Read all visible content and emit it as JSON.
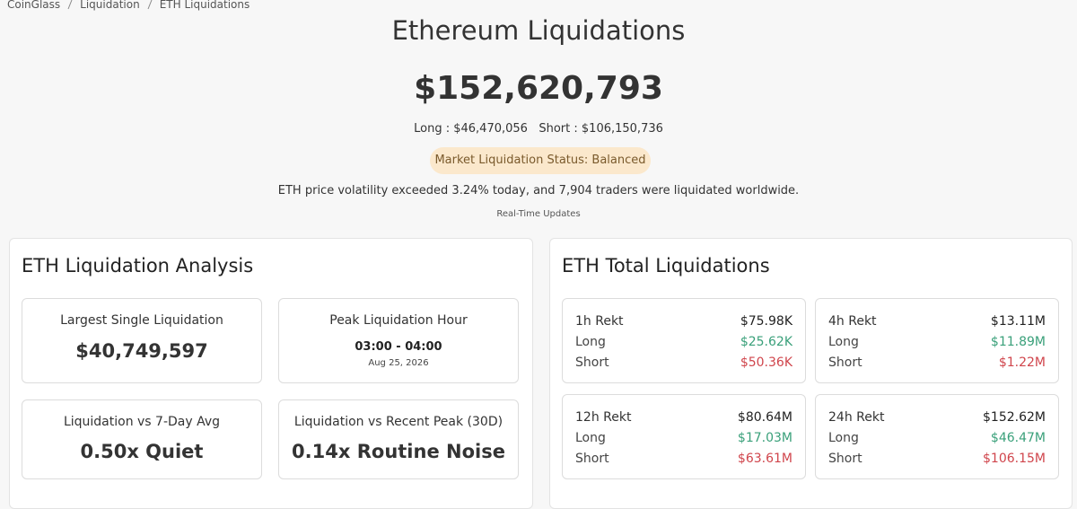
{
  "breadcrumb": [
    "CoinGlass",
    "Liquidation",
    "ETH Liquidations"
  ],
  "header": {
    "title": "Ethereum Liquidations",
    "total": "$152,620,793",
    "long_label": "Long :",
    "long": "$46,470,056",
    "short_label": "Short :",
    "short": "$106,150,736",
    "status": "Market Liquidation Status: Balanced",
    "summary": "ETH price volatility exceeded 3.24% today, and 7,904 traders were liquidated worldwide.",
    "updates": "Real-Time Updates"
  },
  "analysis": {
    "title": "ETH Liquidation Analysis",
    "cards": [
      {
        "label": "Largest Single Liquidation",
        "value": "$40,749,597"
      },
      {
        "label": "Peak Liquidation Hour",
        "value": "03:00 - 04:00",
        "date": "Aug 25, 2026"
      },
      {
        "label": "Liquidation vs 7-Day Avg",
        "value": "0.50x Quiet"
      },
      {
        "label": "Liquidation vs Recent Peak (30D)",
        "value": "0.14x Routine Noise"
      }
    ]
  },
  "totals": {
    "title": "ETH Total Liquidations",
    "cards": [
      {
        "label": "1h Rekt",
        "total": "$75.98K",
        "long_label": "Long",
        "long": "$25.62K",
        "short_label": "Short",
        "short": "$50.36K"
      },
      {
        "label": "4h Rekt",
        "total": "$13.11M",
        "long_label": "Long",
        "long": "$11.89M",
        "short_label": "Short",
        "short": "$1.22M"
      },
      {
        "label": "12h Rekt",
        "total": "$80.64M",
        "long_label": "Long",
        "long": "$17.03M",
        "short_label": "Short",
        "short": "$63.61M"
      },
      {
        "label": "24h Rekt",
        "total": "$152.62M",
        "long_label": "Long",
        "long": "$46.47M",
        "short_label": "Short",
        "short": "$106.15M"
      }
    ]
  }
}
